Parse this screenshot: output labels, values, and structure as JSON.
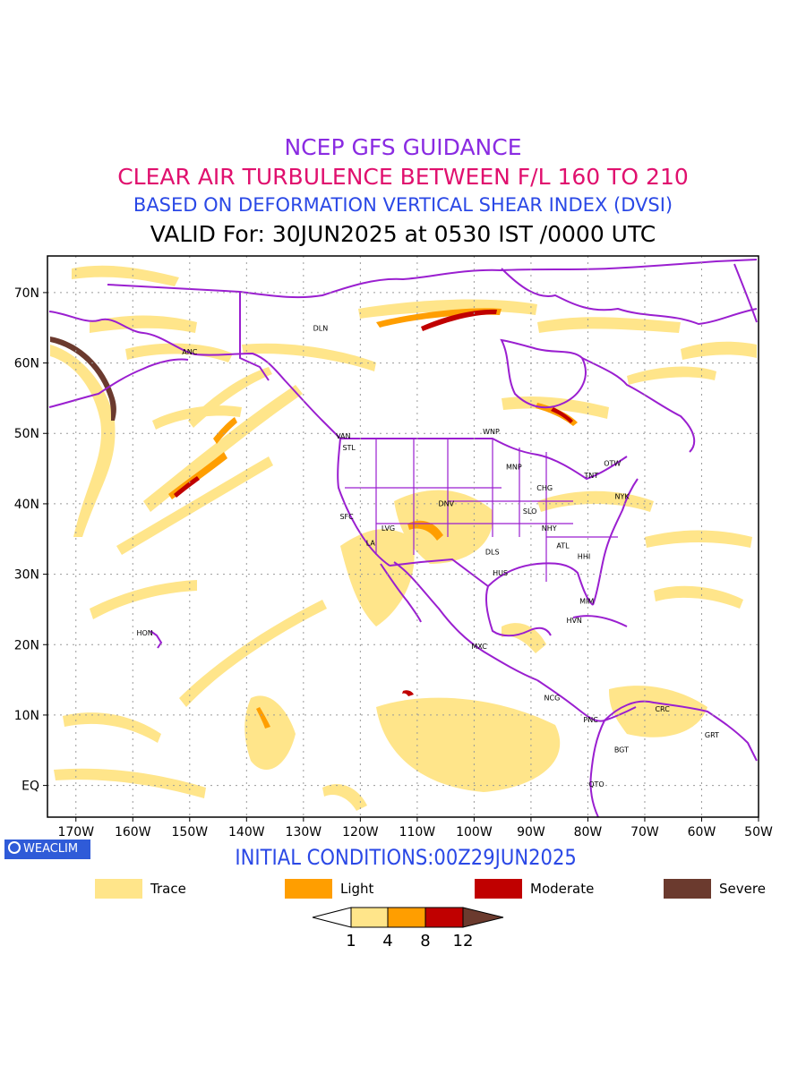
{
  "titles": {
    "line1": "NCEP GFS GUIDANCE",
    "line2": "CLEAR AIR TURBULENCE BETWEEN F/L 160 TO 210",
    "line3": "BASED ON DEFORMATION VERTICAL SHEAR INDEX (DVSI)",
    "line4": "VALID For: 30JUN2025 at 0530 IST /0000 UTC"
  },
  "colors": {
    "title1": "#8a2be2",
    "title2": "#e0106e",
    "title3": "#2a48e6",
    "boundary": "#9a1fd0",
    "trace": "#ffe58a",
    "light": "#ff9e00",
    "moderate": "#c00000",
    "severe": "#6b3a2e",
    "frame": "#000000"
  },
  "map": {
    "lat_labels": [
      "70N",
      "60N",
      "50N",
      "40N",
      "30N",
      "20N",
      "10N",
      "EQ"
    ],
    "lon_labels": [
      "170W",
      "160W",
      "150W",
      "140W",
      "130W",
      "120W",
      "110W",
      "100W",
      "90W",
      "80W",
      "70W",
      "60W",
      "50W"
    ],
    "stations": [
      {
        "code": "ANC",
        "lon": -150,
        "lat": 61.2
      },
      {
        "code": "DLN",
        "lon": -127,
        "lat": 64.6
      },
      {
        "code": "VAN",
        "lon": -123,
        "lat": 49.3
      },
      {
        "code": "STL",
        "lon": -122,
        "lat": 47.6
      },
      {
        "code": "WNP",
        "lon": -97,
        "lat": 49.9
      },
      {
        "code": "MNP",
        "lon": -93,
        "lat": 44.9
      },
      {
        "code": "OTW",
        "lon": -75.7,
        "lat": 45.4
      },
      {
        "code": "TNT",
        "lon": -79.4,
        "lat": 43.7
      },
      {
        "code": "CHG",
        "lon": -87.6,
        "lat": 41.9
      },
      {
        "code": "NYK",
        "lon": -74,
        "lat": 40.7
      },
      {
        "code": "DNV",
        "lon": -104.9,
        "lat": 39.7
      },
      {
        "code": "SFC",
        "lon": -122.4,
        "lat": 37.8
      },
      {
        "code": "LVG",
        "lon": -115.1,
        "lat": 36.2
      },
      {
        "code": "SLO",
        "lon": -90.2,
        "lat": 38.6
      },
      {
        "code": "LA",
        "lon": -118.2,
        "lat": 34.1
      },
      {
        "code": "NHY",
        "lon": -86.8,
        "lat": 36.2
      },
      {
        "code": "ATL",
        "lon": -84.4,
        "lat": 33.7
      },
      {
        "code": "DLS",
        "lon": -96.8,
        "lat": 32.8
      },
      {
        "code": "HHI",
        "lon": -80.7,
        "lat": 32.2
      },
      {
        "code": "HUS",
        "lon": -95.4,
        "lat": 29.8
      },
      {
        "code": "MIM",
        "lon": -80.2,
        "lat": 25.8
      },
      {
        "code": "HVN",
        "lon": -82.4,
        "lat": 23.1
      },
      {
        "code": "HON",
        "lon": -157.9,
        "lat": 21.3
      },
      {
        "code": "MXC",
        "lon": -99.1,
        "lat": 19.4
      },
      {
        "code": "NCG",
        "lon": -86.3,
        "lat": 12.1
      },
      {
        "code": "CRC",
        "lon": -66.9,
        "lat": 10.5
      },
      {
        "code": "PNC",
        "lon": -79.5,
        "lat": 9
      },
      {
        "code": "GRT",
        "lon": -58.2,
        "lat": 6.8
      },
      {
        "code": "BGT",
        "lon": -74.1,
        "lat": 4.7
      },
      {
        "code": "QTO",
        "lon": -78.5,
        "lat": -0.2
      }
    ]
  },
  "badge": {
    "label": "WEACLIM"
  },
  "initial_conditions": "INITIAL CONDITIONS:00Z29JUN2025",
  "legend": [
    {
      "label": "Trace",
      "color": "#ffe58a"
    },
    {
      "label": "Light",
      "color": "#ff9e00"
    },
    {
      "label": "Moderate",
      "color": "#c00000"
    },
    {
      "label": "Severe",
      "color": "#6b3a2e"
    }
  ],
  "colorbar": {
    "ticks": [
      "1",
      "4",
      "8",
      "12"
    ]
  }
}
